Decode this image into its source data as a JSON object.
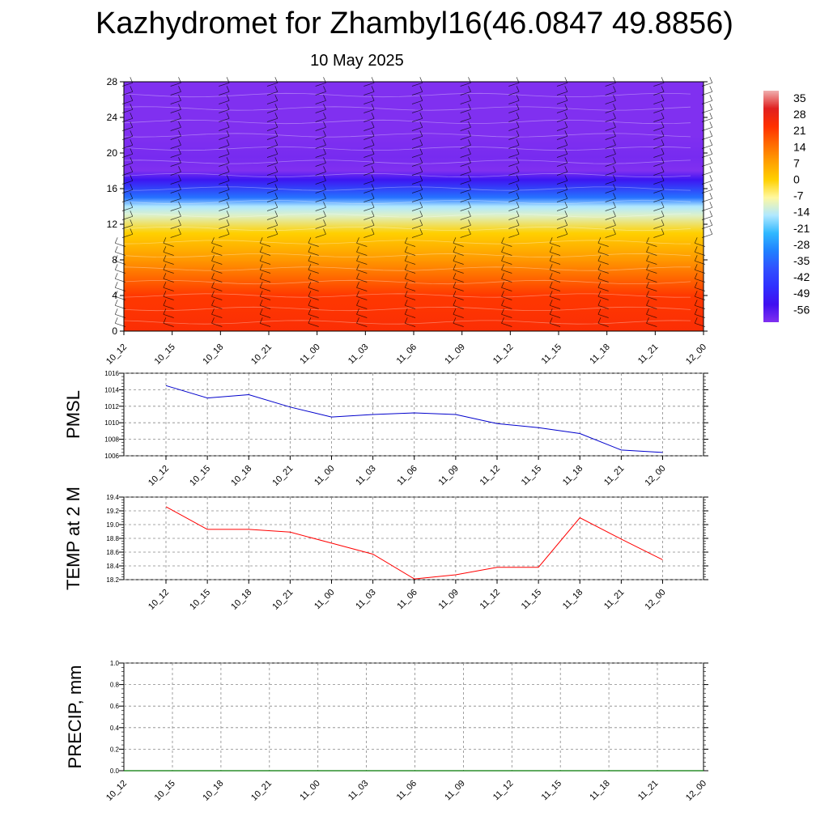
{
  "header": {
    "title": "Kazhydromet for Zhambyl16(46.0847 49.8856)",
    "date": "10 May 2025"
  },
  "chart_data": [
    {
      "type": "heatmap",
      "id": "profile",
      "x": [
        "10_12",
        "10_15",
        "10_18",
        "10_21",
        "11_00",
        "11_03",
        "11_06",
        "11_09",
        "11_12",
        "11_15",
        "11_18",
        "11_21",
        "12_00"
      ],
      "y_ticks": [
        0,
        4,
        8,
        12,
        16,
        20,
        24,
        28
      ],
      "ylim": [
        0,
        28
      ],
      "colorbar": {
        "labels": [
          "35",
          "28",
          "21",
          "14",
          "7",
          "0",
          "-7",
          "-14",
          "-21",
          "-28",
          "-35",
          "-42",
          "-49",
          "-56"
        ],
        "colors": [
          "#f0b0b0",
          "#e02020",
          "#ff3000",
          "#ff6a00",
          "#ffa000",
          "#ffd000",
          "#fff8a0",
          "#b0e8ff",
          "#30b8ff",
          "#2080ff",
          "#3050ff",
          "#3030ff",
          "#4010f0",
          "#8030f0"
        ]
      },
      "temperature_profile": [
        {
          "level": 0,
          "value": 22
        },
        {
          "level": 4,
          "value": 20
        },
        {
          "level": 8,
          "value": 8
        },
        {
          "level": 11,
          "value": 0
        },
        {
          "level": 13,
          "value": -10
        },
        {
          "level": 14,
          "value": -14
        },
        {
          "level": 15,
          "value": -30
        },
        {
          "level": 17,
          "value": -48
        },
        {
          "level": 18,
          "value": -60
        },
        {
          "level": 19.5,
          "value": -55
        },
        {
          "level": 22,
          "value": -58
        },
        {
          "level": 28,
          "value": -56
        }
      ]
    },
    {
      "type": "line",
      "id": "pmsl",
      "ylabel": "PMSL",
      "x": [
        "10_12",
        "10_15",
        "10_18",
        "10_21",
        "11_00",
        "11_03",
        "11_06",
        "11_09",
        "11_12",
        "11_15",
        "11_18",
        "11_21",
        "12_00"
      ],
      "y_ticks": [
        "1006",
        "1008",
        "1010",
        "1012",
        "1014",
        "1016"
      ],
      "ylim": [
        1006,
        1016
      ],
      "series": [
        {
          "values": [
            1014.5,
            1013.0,
            1013.4,
            1011.9,
            1010.7,
            1011.0,
            1011.2,
            1011.0,
            1009.9,
            1009.4,
            1008.7,
            1006.7,
            1006.4
          ]
        }
      ],
      "color": "#0000cc"
    },
    {
      "type": "line",
      "id": "temp",
      "ylabel": "TEMP at 2 M",
      "x": [
        "10_12",
        "10_15",
        "10_18",
        "10_21",
        "11_00",
        "11_03",
        "11_06",
        "11_09",
        "11_12",
        "11_15",
        "11_18",
        "11_21",
        "12_00"
      ],
      "y_ticks": [
        "18.2",
        "18.4",
        "18.6",
        "18.8",
        "19.0",
        "19.2",
        "19.4"
      ],
      "ylim": [
        18.2,
        19.4
      ],
      "series": [
        {
          "values": [
            19.26,
            18.93,
            18.93,
            18.89,
            18.73,
            18.57,
            18.21,
            18.27,
            18.38,
            18.38,
            19.1,
            18.79,
            18.49
          ]
        }
      ],
      "color": "#ff0000"
    },
    {
      "type": "line",
      "id": "precip",
      "ylabel": "PRECIP, mm",
      "x": [
        "10_12",
        "10_15",
        "10_18",
        "10_21",
        "11_00",
        "11_03",
        "11_06",
        "11_09",
        "11_12",
        "11_15",
        "11_18",
        "11_21",
        "12_00"
      ],
      "y_ticks": [
        "0.0",
        "0.2",
        "0.4",
        "0.6",
        "0.8",
        "1.0"
      ],
      "ylim": [
        0,
        1
      ],
      "series": [
        {
          "values": [
            0,
            0,
            0,
            0,
            0,
            0,
            0,
            0,
            0,
            0,
            0,
            0,
            0
          ]
        }
      ],
      "color": "#007700"
    }
  ]
}
